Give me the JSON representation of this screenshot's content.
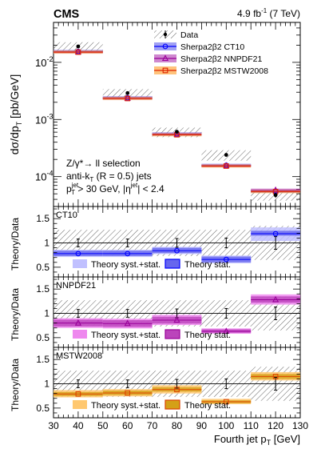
{
  "chart_data": [
    {
      "type": "line",
      "experiment": "CMS",
      "header_right_prefix": "4.9 fb",
      "header_right_exp": "-1",
      "header_right_suffix": " (7 TeV)",
      "ylabel": "dσ/dp",
      "ylabel_sub": "T",
      "ylabel_units": " [pb/GeV]",
      "ylog": true,
      "ylim": [
        3e-05,
        0.05
      ],
      "xlim": [
        30,
        130
      ],
      "bins": [
        [
          30,
          50
        ],
        [
          50,
          70
        ],
        [
          70,
          90
        ],
        [
          90,
          110
        ],
        [
          110,
          130
        ]
      ],
      "bin_centers": [
        40,
        60,
        80,
        100,
        120
      ],
      "y_tick_labels": [
        "10",
        "10",
        "10",
        "10"
      ],
      "y_tick_exps": [
        "-4",
        "-3",
        "-2",
        ""
      ],
      "data_values": [
        0.019,
        0.0029,
        0.00061,
        0.00024,
        4.75e-05
      ],
      "data_errors_low": [
        0.0008,
        0.00012,
        3e-05,
        1.5e-05,
        5e-06
      ],
      "data_errors_high": [
        0.0008,
        0.00012,
        3e-05,
        1.5e-05,
        5e-06
      ],
      "band_low": [
        0.0155,
        0.0023,
        0.00049,
        0.00019,
        3.8e-05
      ],
      "band_high": [
        0.0225,
        0.0034,
        0.00072,
        0.00029,
        5.8e-05
      ],
      "series": [
        {
          "name": "Sherpa2β2 CT10",
          "values": [
            0.0155,
            0.0024,
            0.00056,
            0.000158,
            5.55e-05
          ],
          "color": "#0000ff",
          "fill": "#7777ee",
          "marker": "circle"
        },
        {
          "name": "Sherpa2β2 NNPDF21",
          "values": [
            0.0152,
            0.00235,
            0.00055,
            0.000155,
            5.8e-05
          ],
          "color": "#990099",
          "fill": "#bb55bb",
          "marker": "triangle"
        },
        {
          "name": "Sherpa2β2 MSTW2008",
          "values": [
            0.0151,
            0.00233,
            0.00054,
            0.000153,
            5.45e-05
          ],
          "color": "#dd2200",
          "fill": "#ffaa44",
          "marker": "square"
        }
      ],
      "legend": {
        "data_label": "Data",
        "placement": "top-right"
      },
      "annotations": [
        "Z/γ*→ ll selection",
        "anti-k",
        "T",
        " (R = 0.5) jets",
        "p",
        "jet",
        "T",
        " > 30 GeV, |η",
        "jet",
        "| < 2.4"
      ]
    },
    {
      "type": "line",
      "panel_label": "CT10",
      "ylabel": "Theory/Data",
      "ylim": [
        0.3,
        1.75
      ],
      "y_tick_labels": [
        "0.5",
        "1",
        "1.5"
      ],
      "y_ticks": [
        0.5,
        1.0,
        1.5
      ],
      "data_unc": [
        0.27,
        0.27,
        0.27,
        0.27,
        0.35
      ],
      "data_stat": [
        0.08,
        0.08,
        0.09,
        0.1,
        0.13
      ],
      "ratio": [
        0.78,
        0.78,
        0.84,
        0.66,
        1.19
      ],
      "syst_low": [
        0.71,
        0.71,
        0.77,
        0.58,
        1.04
      ],
      "syst_high": [
        0.86,
        0.86,
        0.92,
        0.74,
        1.32
      ],
      "stat_low": [
        0.73,
        0.73,
        0.79,
        0.6,
        1.15
      ],
      "stat_high": [
        0.84,
        0.84,
        0.9,
        0.72,
        1.25
      ],
      "syst_color": "#c0c0ff",
      "stat_color": "#6666ee",
      "line_color": "#0000ff",
      "marker": "circle",
      "legend": [
        "Theory syst.+stat.",
        "Theory stat."
      ]
    },
    {
      "type": "line",
      "panel_label": "NNPDF21",
      "ylabel": "Theory/Data",
      "ylim": [
        0.3,
        1.75
      ],
      "y_tick_labels": [
        "0.5",
        "1",
        "1.5"
      ],
      "y_ticks": [
        0.5,
        1.0,
        1.5
      ],
      "data_unc": [
        0.27,
        0.27,
        0.27,
        0.27,
        0.35
      ],
      "data_stat": [
        0.08,
        0.08,
        0.09,
        0.1,
        0.13
      ],
      "ratio": [
        0.8,
        0.79,
        0.86,
        0.63,
        1.28
      ],
      "syst_low": [
        0.7,
        0.69,
        0.76,
        0.58,
        1.18
      ],
      "syst_high": [
        0.9,
        0.89,
        0.97,
        0.69,
        1.39
      ],
      "stat_low": [
        0.73,
        0.72,
        0.79,
        0.6,
        1.22
      ],
      "stat_high": [
        0.87,
        0.86,
        0.93,
        0.67,
        1.35
      ],
      "syst_color": "#ee88ee",
      "stat_color": "#bb44bb",
      "line_color": "#990099",
      "marker": "triangle",
      "legend": [
        "Theory syst.+stat.",
        "Theory stat."
      ]
    },
    {
      "type": "line",
      "panel_label": "MSTW2008",
      "ylabel": "Theory/Data",
      "ylim": [
        0.3,
        1.75
      ],
      "y_tick_labels": [
        "0.5",
        "1",
        "1.5"
      ],
      "y_ticks": [
        0.5,
        1.0,
        1.5
      ],
      "data_unc": [
        0.27,
        0.27,
        0.27,
        0.27,
        0.35
      ],
      "data_stat": [
        0.08,
        0.08,
        0.09,
        0.1,
        0.13
      ],
      "ratio": [
        0.79,
        0.81,
        0.88,
        0.63,
        1.15
      ],
      "syst_low": [
        0.72,
        0.74,
        0.8,
        0.58,
        1.07
      ],
      "syst_high": [
        0.87,
        0.89,
        0.97,
        0.69,
        1.24
      ],
      "stat_low": [
        0.75,
        0.77,
        0.84,
        0.6,
        1.1
      ],
      "stat_high": [
        0.83,
        0.86,
        0.93,
        0.66,
        1.2
      ],
      "syst_color": "#ffc870",
      "stat_color": "#d4a017",
      "line_color": "#dd4400",
      "marker": "square",
      "legend": [
        "Theory syst.+stat.",
        "Theory stat."
      ],
      "xlabel": "Fourth jet p",
      "xlabel_sub": "T",
      "xlabel_units": " [GeV]",
      "x_tick_labels": [
        "30",
        "40",
        "50",
        "60",
        "70",
        "80",
        "90",
        "100",
        "110",
        "120",
        "130"
      ]
    }
  ]
}
